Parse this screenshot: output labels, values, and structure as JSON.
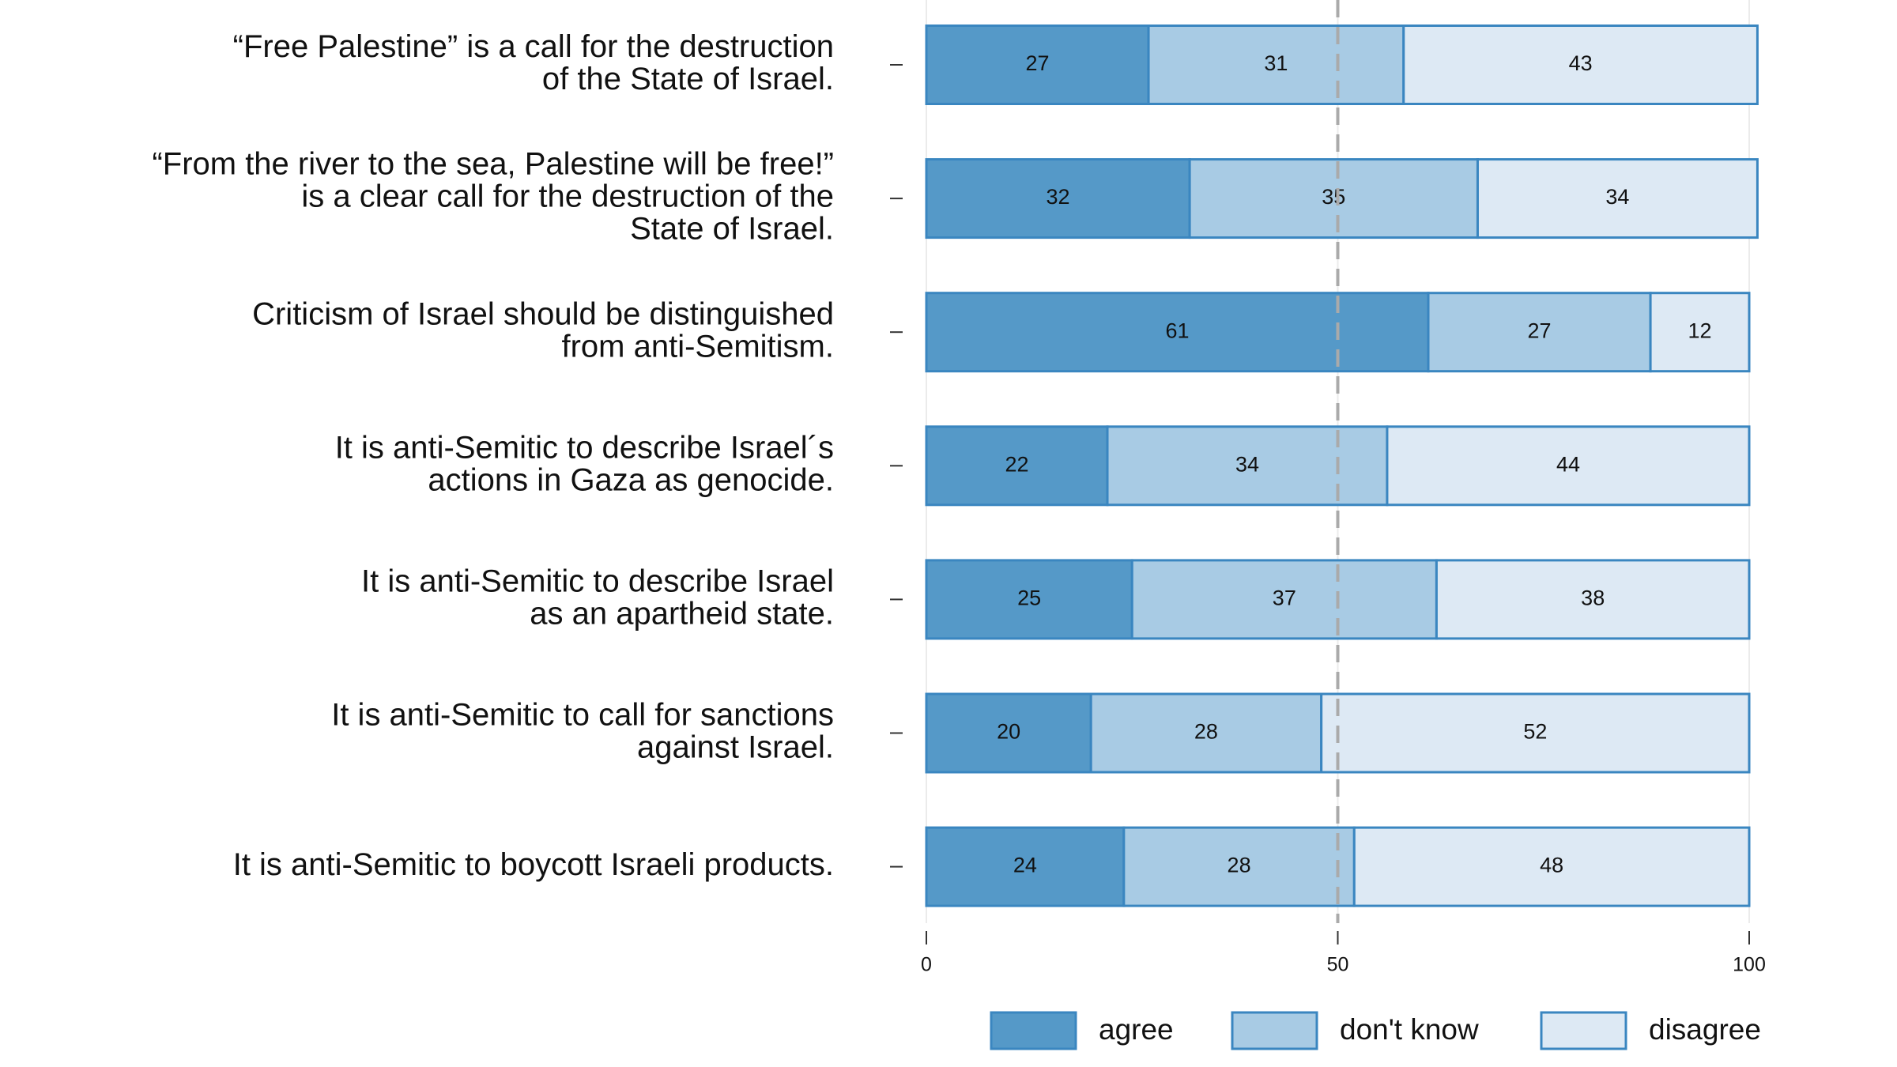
{
  "chart_data": {
    "type": "stacked_barh",
    "categories": [
      [
        "“Free Palestine” is a call for the destruction",
        "of the State of Israel."
      ],
      [
        "“From the river to the sea, Palestine will be free!”",
        "is a clear call for the destruction of the",
        "State of Israel."
      ],
      [
        "Criticism of Israel should be distinguished",
        "from anti-Semitism."
      ],
      [
        "It is anti-Semitic to describe Israel´s",
        "actions in Gaza as genocide."
      ],
      [
        "It is anti-Semitic to describe Israel",
        "as an apartheid state."
      ],
      [
        "It is anti-Semitic to call for sanctions",
        "against Israel."
      ],
      [
        "It is anti-Semitic to boycott Israeli products."
      ]
    ],
    "series": [
      {
        "name": "agree",
        "color": "#5599c8",
        "values": [
          27,
          32,
          61,
          22,
          25,
          20,
          24
        ]
      },
      {
        "name": "don't know",
        "color": "#a8cbe4",
        "values": [
          31,
          35,
          27,
          34,
          37,
          28,
          28
        ]
      },
      {
        "name": "disagree",
        "color": "#dde9f4",
        "values": [
          43,
          34,
          12,
          44,
          38,
          52,
          48
        ]
      }
    ],
    "xlim": [
      0,
      100
    ],
    "xticks": [
      0,
      50,
      100
    ],
    "grid": true,
    "refline": 50,
    "legend": "bottom"
  }
}
